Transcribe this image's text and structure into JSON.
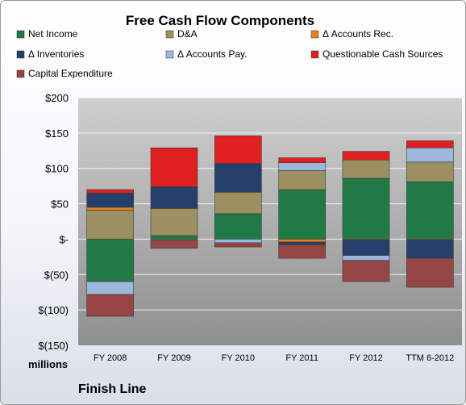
{
  "chart_data": {
    "type": "bar",
    "stacked": true,
    "title": "Free Cash Flow Components",
    "categories": [
      "FY 2008",
      "FY 2009",
      "FY 2010",
      "FY 2011",
      "FY 2012",
      "TTM 6-2012"
    ],
    "ylim": [
      -150,
      200
    ],
    "yticks": [
      -150,
      -100,
      -50,
      0,
      50,
      100,
      150,
      200
    ],
    "ytick_labels": [
      "$(150)",
      "$(100)",
      "$(50)",
      "$-",
      "$50",
      "$100",
      "$150",
      "$200"
    ],
    "units_label": "millions",
    "company_label": "Finish Line",
    "legend_placement": "top",
    "grid": true,
    "series": [
      {
        "name": "Net Income",
        "color": "#1f7a45",
        "values": [
          -60,
          5,
          36,
          70,
          86,
          81
        ]
      },
      {
        "name": "D&A",
        "color": "#9c9060",
        "values": [
          41,
          38,
          30,
          27,
          26,
          28
        ]
      },
      {
        "name": "Δ Accounts Rec.",
        "color": "#e8801c",
        "values": [
          4,
          1,
          1,
          -4,
          -1,
          -1
        ]
      },
      {
        "name": "Δ Inventories",
        "color": "#243f6b",
        "values": [
          20,
          30,
          40,
          -4,
          -22,
          -26
        ]
      },
      {
        "name": "Δ Accounts Pay.",
        "color": "#9db8df",
        "values": [
          -18,
          -1,
          -5,
          11,
          -7,
          20
        ]
      },
      {
        "name": "Questionable Cash Sources",
        "color": "#e02020",
        "values": [
          5,
          55,
          39,
          7,
          12,
          10
        ]
      },
      {
        "name": "Capital Expenditure",
        "color": "#964545",
        "values": [
          -31,
          -12,
          -6,
          -19,
          -30,
          -41
        ]
      }
    ]
  }
}
